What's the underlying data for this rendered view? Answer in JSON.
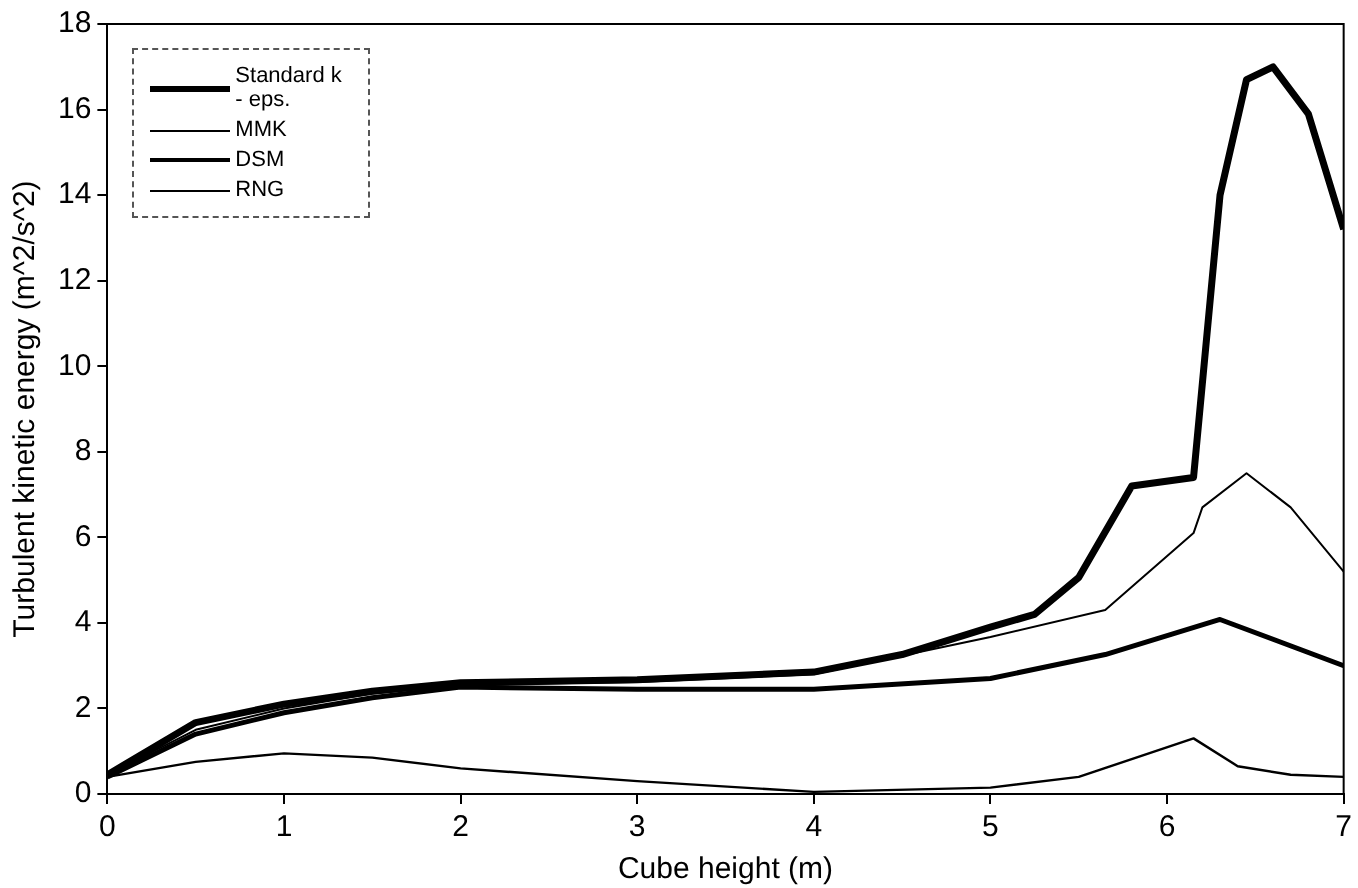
{
  "chart_data": {
    "type": "line",
    "xlabel": "Cube height (m)",
    "ylabel": "Turbulent kinetic energy (m^2/s^2)",
    "xlim": [
      0,
      7
    ],
    "xticks": [
      0,
      1,
      2,
      3,
      4,
      5,
      6,
      7
    ],
    "ylim": [
      0,
      18
    ],
    "yticks": [
      0,
      2,
      4,
      6,
      8,
      10,
      12,
      14,
      16,
      18
    ],
    "grid": false,
    "legend": "top left",
    "marker": "none",
    "series": [
      {
        "name": "Standard k - eps.",
        "color": "#000000",
        "x": [
          0,
          0.5,
          1,
          1.5,
          2,
          3,
          4,
          4.5,
          5,
          5.25,
          5.5,
          5.8,
          6.15,
          6.3,
          6.45,
          6.6,
          6.8,
          7
        ],
        "values": [
          0.45,
          1.67,
          2.1,
          2.4,
          2.6,
          2.67,
          2.85,
          3.26,
          3.9,
          4.2,
          5.06,
          7.2,
          7.4,
          14,
          16.7,
          17,
          15.9,
          13.2
        ]
      },
      {
        "name": "MMK",
        "color": "#000000",
        "x": [
          0,
          0.5,
          1,
          1.5,
          2,
          3,
          4,
          5,
          5.5,
          6.15,
          6.4,
          6.7,
          7
        ],
        "values": [
          0.4,
          0.75,
          0.95,
          0.85,
          0.6,
          0.3,
          0.05,
          0.15,
          0.4,
          1.3,
          0.65,
          0.45,
          0.4
        ]
      },
      {
        "name": "DSM",
        "color": "#000000",
        "x": [
          0,
          0.5,
          1,
          1.5,
          2,
          3,
          4,
          5,
          5.65,
          6.3,
          7
        ],
        "values": [
          0.4,
          1.4,
          1.9,
          2.25,
          2.5,
          2.45,
          2.45,
          2.7,
          3.26,
          4.08,
          3
        ]
      },
      {
        "name": "RNG",
        "color": "#000000",
        "x": [
          0,
          0.5,
          1,
          1.5,
          2,
          3,
          4,
          5,
          5.65,
          6.15,
          6.2,
          6.45,
          6.7,
          7
        ],
        "values": [
          0.45,
          1.5,
          2,
          2.35,
          2.55,
          2.62,
          2.8,
          3.67,
          4.3,
          6.1,
          6.7,
          7.5,
          6.7,
          5.2
        ]
      }
    ]
  }
}
